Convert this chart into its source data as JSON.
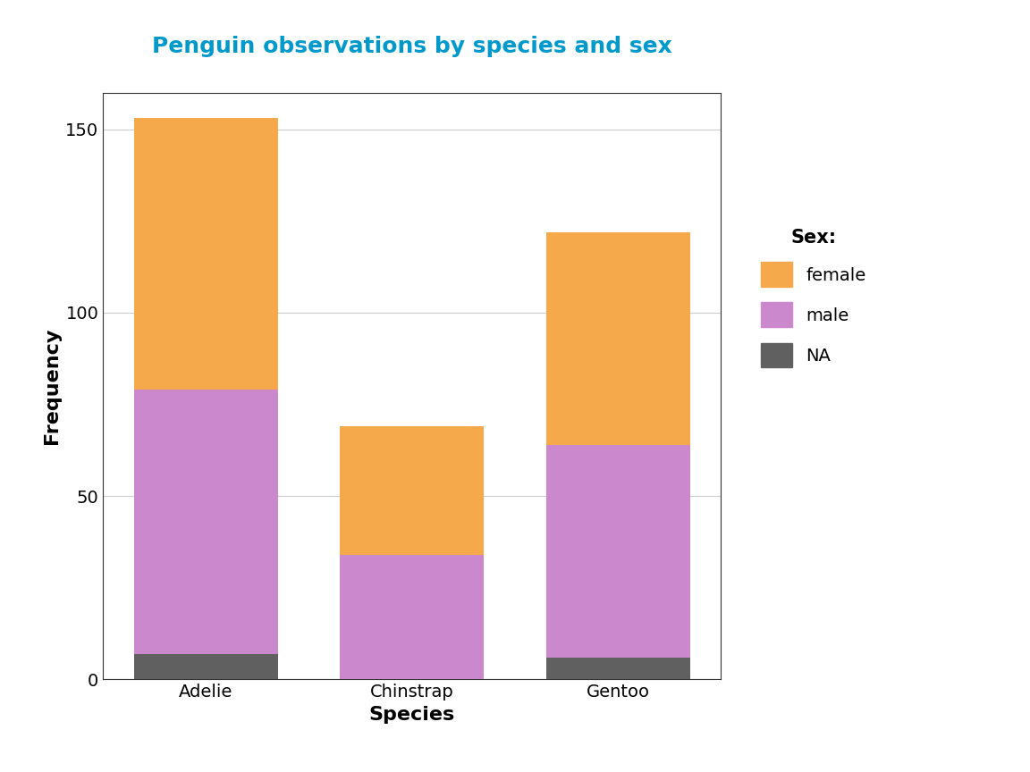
{
  "categories": [
    "Adelie",
    "Chinstrap",
    "Gentoo"
  ],
  "na": [
    7,
    0,
    6
  ],
  "male": [
    72,
    34,
    58
  ],
  "female": [
    74,
    35,
    58
  ],
  "colors": {
    "NA": "#606060",
    "male": "#CC88CC",
    "female": "#F5A94A"
  },
  "title": "Penguin observations by species and sex",
  "title_color": "#0099CC",
  "xlabel": "Species",
  "ylabel": "Frequency",
  "ylim": [
    0,
    160
  ],
  "yticks": [
    0,
    50,
    100,
    150
  ],
  "legend_title": "Sex:",
  "background_color": "#FFFFFF",
  "panel_background": "#FFFFFF",
  "grid_color": "#CCCCCC",
  "bar_width": 0.7
}
